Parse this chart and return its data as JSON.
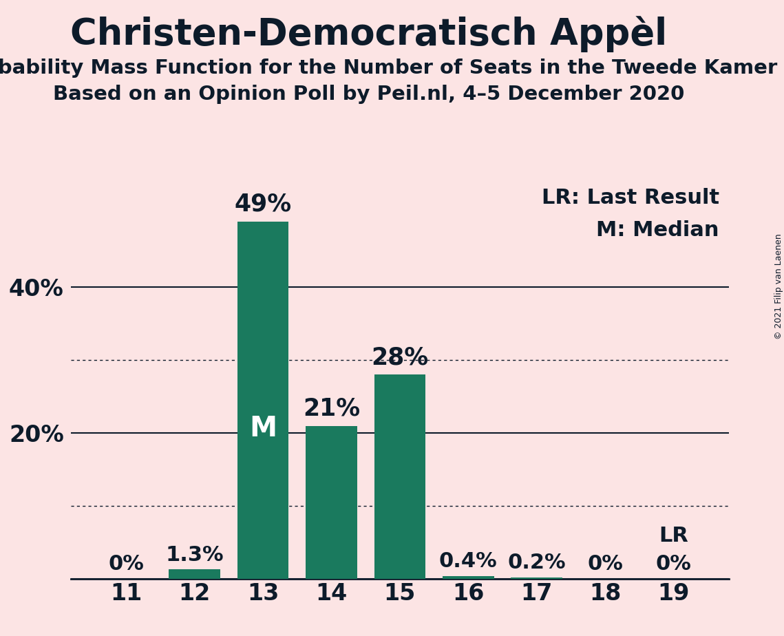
{
  "title": "Christen-Democratisch Appèl",
  "subtitle1": "Probability Mass Function for the Number of Seats in the Tweede Kamer",
  "subtitle2": "Based on an Opinion Poll by Peil.nl, 4–5 December 2020",
  "copyright": "© 2021 Filip van Laenen",
  "seats": [
    11,
    12,
    13,
    14,
    15,
    16,
    17,
    18,
    19
  ],
  "probabilities": [
    0.0,
    1.3,
    49.0,
    21.0,
    28.0,
    0.4,
    0.2,
    0.0,
    0.0
  ],
  "bar_color": "#1a7a5e",
  "background_color": "#fce4e4",
  "text_color": "#0d1b2a",
  "median_seat": 13,
  "lr_seat": 19,
  "legend_lr": "LR: Last Result",
  "legend_m": "M: Median",
  "ytick_labeled": [
    20,
    40
  ],
  "ytick_dotted": [
    10,
    30
  ],
  "ytick_solid": [
    0,
    20,
    40
  ],
  "ylim": [
    0,
    55
  ],
  "title_fontsize": 38,
  "subtitle_fontsize": 21,
  "tick_fontsize": 24,
  "bar_label_fontsize": 22,
  "bar_label_large_fontsize": 25,
  "legend_fontsize": 22,
  "copyright_fontsize": 9
}
